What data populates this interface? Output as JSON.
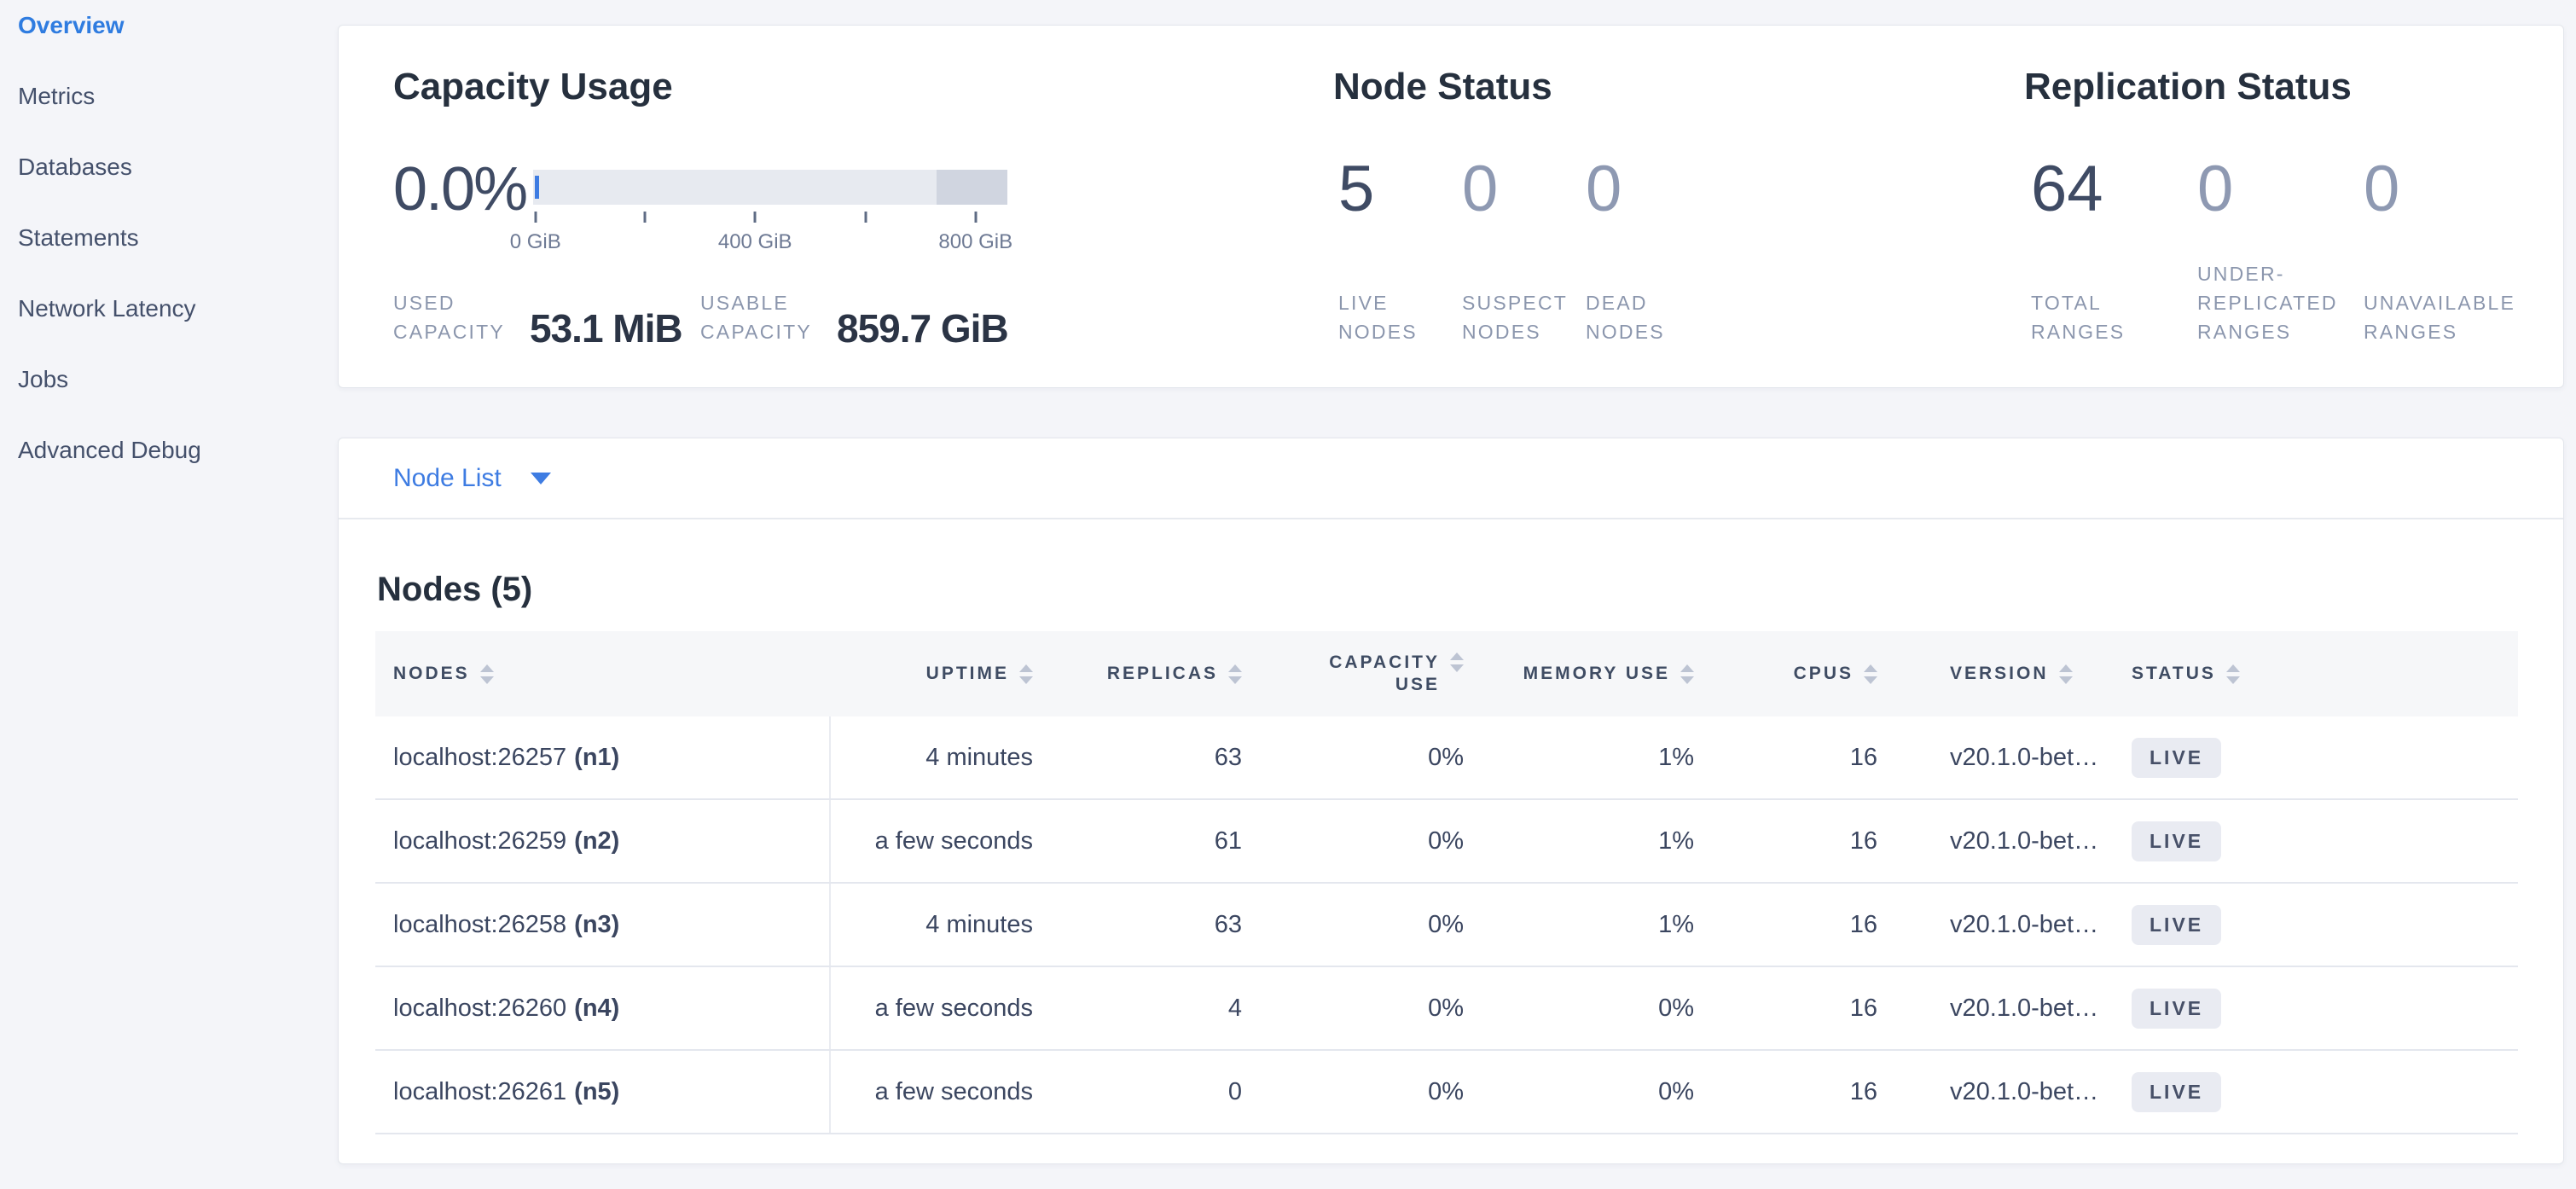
{
  "sidebar": {
    "items": [
      {
        "label": "Overview",
        "active": true
      },
      {
        "label": "Metrics",
        "active": false
      },
      {
        "label": "Databases",
        "active": false
      },
      {
        "label": "Statements",
        "active": false
      },
      {
        "label": "Network Latency",
        "active": false
      },
      {
        "label": "Jobs",
        "active": false
      },
      {
        "label": "Advanced Debug",
        "active": false
      }
    ]
  },
  "top_cards": {
    "capacity": {
      "title": "Capacity Usage",
      "percent": "0.0%",
      "bar": {
        "tick_positions_pct": [
          0.5,
          23.5,
          46.8,
          70.1,
          93.3
        ],
        "labels": [
          {
            "text": "0 GiB",
            "pos_pct": 0.5
          },
          {
            "text": "400 GiB",
            "pos_pct": 46.8
          },
          {
            "text": "800 GiB",
            "pos_pct": 93.3
          }
        ],
        "used_pct": 0.0,
        "reserved_segment_start_pct": 85,
        "track_color": "#e7eaf0",
        "reserved_color": "#d0d5e0",
        "used_color": "#3e7ce2"
      },
      "stats": [
        {
          "label": "USED CAPACITY",
          "value": "53.1 MiB"
        },
        {
          "label": "USABLE CAPACITY",
          "value": "859.7 GiB"
        }
      ]
    },
    "node_status": {
      "title": "Node Status",
      "stats": [
        {
          "value": "5",
          "label": "LIVE NODES",
          "primary": true
        },
        {
          "value": "0",
          "label": "SUSPECT NODES",
          "primary": false
        },
        {
          "value": "0",
          "label": "DEAD NODES",
          "primary": false
        }
      ]
    },
    "replication": {
      "title": "Replication Status",
      "stats": [
        {
          "value": "64",
          "label": "TOTAL RANGES",
          "primary": true
        },
        {
          "value": "0",
          "label": "UNDER-REPLICATED RANGES",
          "primary": false
        },
        {
          "value": "0",
          "label": "UNAVAILABLE RANGES",
          "primary": false
        }
      ]
    }
  },
  "node_list": {
    "label": "Node List"
  },
  "nodes_section": {
    "title": "Nodes (5)",
    "columns": [
      {
        "label": "NODES",
        "align": "left",
        "key": "nodes",
        "wrap": false
      },
      {
        "label": "UPTIME",
        "align": "right",
        "key": "uptime",
        "wrap": false
      },
      {
        "label": "REPLICAS",
        "align": "right",
        "key": "replicas",
        "wrap": false
      },
      {
        "label": "CAPACITY USE",
        "align": "right",
        "key": "capacity",
        "wrap": true
      },
      {
        "label": "MEMORY USE",
        "align": "right",
        "key": "memory",
        "wrap": false
      },
      {
        "label": "CPUS",
        "align": "right",
        "key": "cpus",
        "wrap": false
      },
      {
        "label": "VERSION",
        "align": "left",
        "key": "version",
        "wrap": false
      },
      {
        "label": "STATUS",
        "align": "left",
        "key": "status",
        "wrap": false
      }
    ],
    "rows": [
      {
        "host": "localhost:26257",
        "id": "(n1)",
        "uptime": "4 minutes",
        "replicas": "63",
        "capacity_use": "0%",
        "memory_use": "1%",
        "cpus": "16",
        "version": "v20.1.0-bet…",
        "status": "LIVE"
      },
      {
        "host": "localhost:26259",
        "id": "(n2)",
        "uptime": "a few seconds",
        "replicas": "61",
        "capacity_use": "0%",
        "memory_use": "1%",
        "cpus": "16",
        "version": "v20.1.0-bet…",
        "status": "LIVE"
      },
      {
        "host": "localhost:26258",
        "id": "(n3)",
        "uptime": "4 minutes",
        "replicas": "63",
        "capacity_use": "0%",
        "memory_use": "1%",
        "cpus": "16",
        "version": "v20.1.0-bet…",
        "status": "LIVE"
      },
      {
        "host": "localhost:26260",
        "id": "(n4)",
        "uptime": "a few seconds",
        "replicas": "4",
        "capacity_use": "0%",
        "memory_use": "0%",
        "cpus": "16",
        "version": "v20.1.0-bet…",
        "status": "LIVE"
      },
      {
        "host": "localhost:26261",
        "id": "(n5)",
        "uptime": "a few seconds",
        "replicas": "0",
        "capacity_use": "0%",
        "memory_use": "0%",
        "cpus": "16",
        "version": "v20.1.0-bet…",
        "status": "LIVE"
      }
    ]
  },
  "colors": {
    "page_bg": "#f4f5f9",
    "card_bg": "#ffffff",
    "accent_blue": "#3e7ce2",
    "primary_text": "#26303e",
    "muted_text": "#8b96ad",
    "badge_bg": "#e9ebf2"
  }
}
